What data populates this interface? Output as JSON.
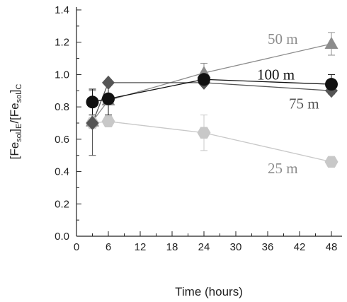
{
  "chart_data": {
    "type": "scatter",
    "xlabel": "Time (hours)",
    "ylabel_parts": {
      "a": "[Fe",
      "a_sub": "sol",
      "b": "]",
      "b_sub": "E",
      "c": "/[Fe",
      "c_sub": "sol",
      "d": "]",
      "d_sub": "C"
    },
    "xlim": [
      0,
      50
    ],
    "ylim": [
      0,
      1.4
    ],
    "xticks": [
      0,
      6,
      12,
      18,
      24,
      30,
      36,
      42,
      48
    ],
    "xticklabels": [
      "0",
      "6",
      "12",
      "18",
      "24",
      "30",
      "36",
      "42",
      "48"
    ],
    "yticks": [
      0.0,
      0.2,
      0.4,
      0.6,
      0.8,
      1.0,
      1.2,
      1.4
    ],
    "yticklabels": [
      "0.0",
      "0.2",
      "0.4",
      "0.6",
      "0.8",
      "1.0",
      "1.2",
      "1.4"
    ],
    "grid": false,
    "series": [
      {
        "name": "25 m",
        "marker": "hexagon",
        "color": "#c8c8c8",
        "label_color": "#8c8c8c",
        "x": [
          3,
          6,
          24,
          48
        ],
        "y": [
          0.7,
          0.71,
          0.64,
          0.46
        ],
        "err": [
          0.0,
          0.0,
          0.11,
          0.0
        ]
      },
      {
        "name": "50 m",
        "marker": "triangle",
        "color": "#8c8c8c",
        "label_color": "#8c8c8c",
        "x": [
          3,
          6,
          24,
          48
        ],
        "y": [
          0.71,
          0.84,
          1.01,
          1.19
        ],
        "err": [
          0.0,
          0.0,
          0.06,
          0.07
        ]
      },
      {
        "name": "75 m",
        "marker": "diamond",
        "color": "#555555",
        "label_color": "#555555",
        "x": [
          3,
          6,
          24,
          48
        ],
        "y": [
          0.7,
          0.95,
          0.95,
          0.9
        ],
        "err": [
          0.2,
          0.0,
          0.0,
          0.0
        ]
      },
      {
        "name": "100 m",
        "marker": "circle",
        "color": "#111111",
        "label_color": "#111111",
        "x": [
          3,
          6,
          24,
          48
        ],
        "y": [
          0.83,
          0.85,
          0.97,
          0.94
        ],
        "err": [
          0.08,
          0.1,
          0.0,
          0.06
        ]
      }
    ],
    "labels": [
      {
        "series": "50 m",
        "x": 36,
        "y": 1.19
      },
      {
        "series": "100 m",
        "x": 34,
        "y": 0.97
      },
      {
        "series": "75 m",
        "x": 40,
        "y": 0.79
      },
      {
        "series": "25 m",
        "x": 36,
        "y": 0.39
      }
    ]
  }
}
